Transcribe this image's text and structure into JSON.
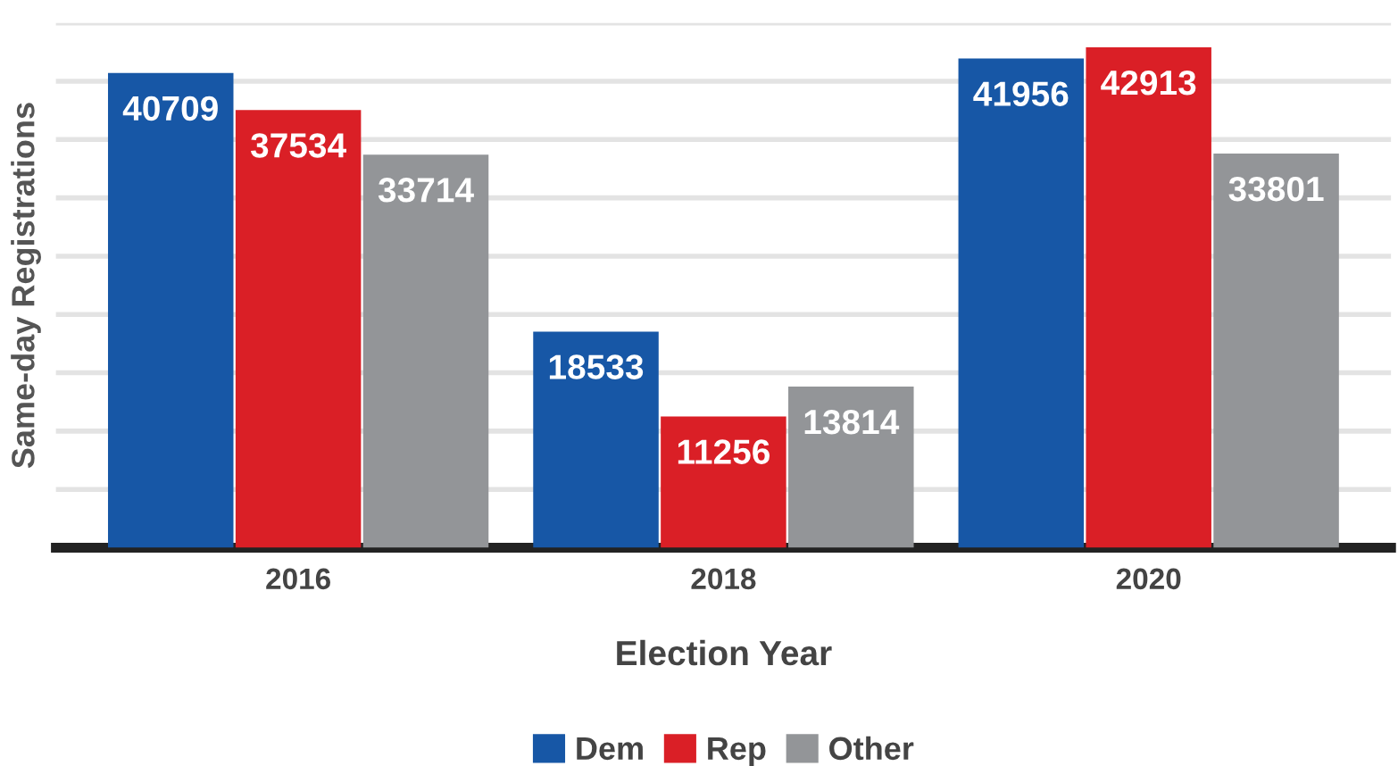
{
  "chart_data": {
    "type": "bar",
    "xlabel": "Election Year",
    "ylabel": "Same-day Registrations",
    "categories": [
      "2016",
      "2018",
      "2020"
    ],
    "series": [
      {
        "name": "Dem",
        "color": "#1757a6",
        "values": [
          40709,
          18533,
          41956
        ]
      },
      {
        "name": "Rep",
        "color": "#da1f26",
        "values": [
          37534,
          11256,
          42913
        ]
      },
      {
        "name": "Other",
        "color": "#939598",
        "values": [
          33714,
          13814,
          33801
        ]
      }
    ],
    "ylim": [
      0,
      45000
    ],
    "yticks": [
      {
        "value": 0,
        "label": null
      },
      {
        "value": 5000,
        "label": null
      },
      {
        "value": 10000,
        "label": null
      },
      {
        "value": 15000,
        "label": null
      },
      {
        "value": 20000,
        "label": null
      },
      {
        "value": 25000,
        "label": null
      },
      {
        "value": 30000,
        "label": null
      },
      {
        "value": 35000,
        "label": null
      },
      {
        "value": 40000,
        "label": null
      },
      {
        "value": 45000,
        "label": null
      }
    ],
    "tick_labels": "x",
    "grid": "y",
    "legend": "bottom",
    "data_labels": true
  }
}
